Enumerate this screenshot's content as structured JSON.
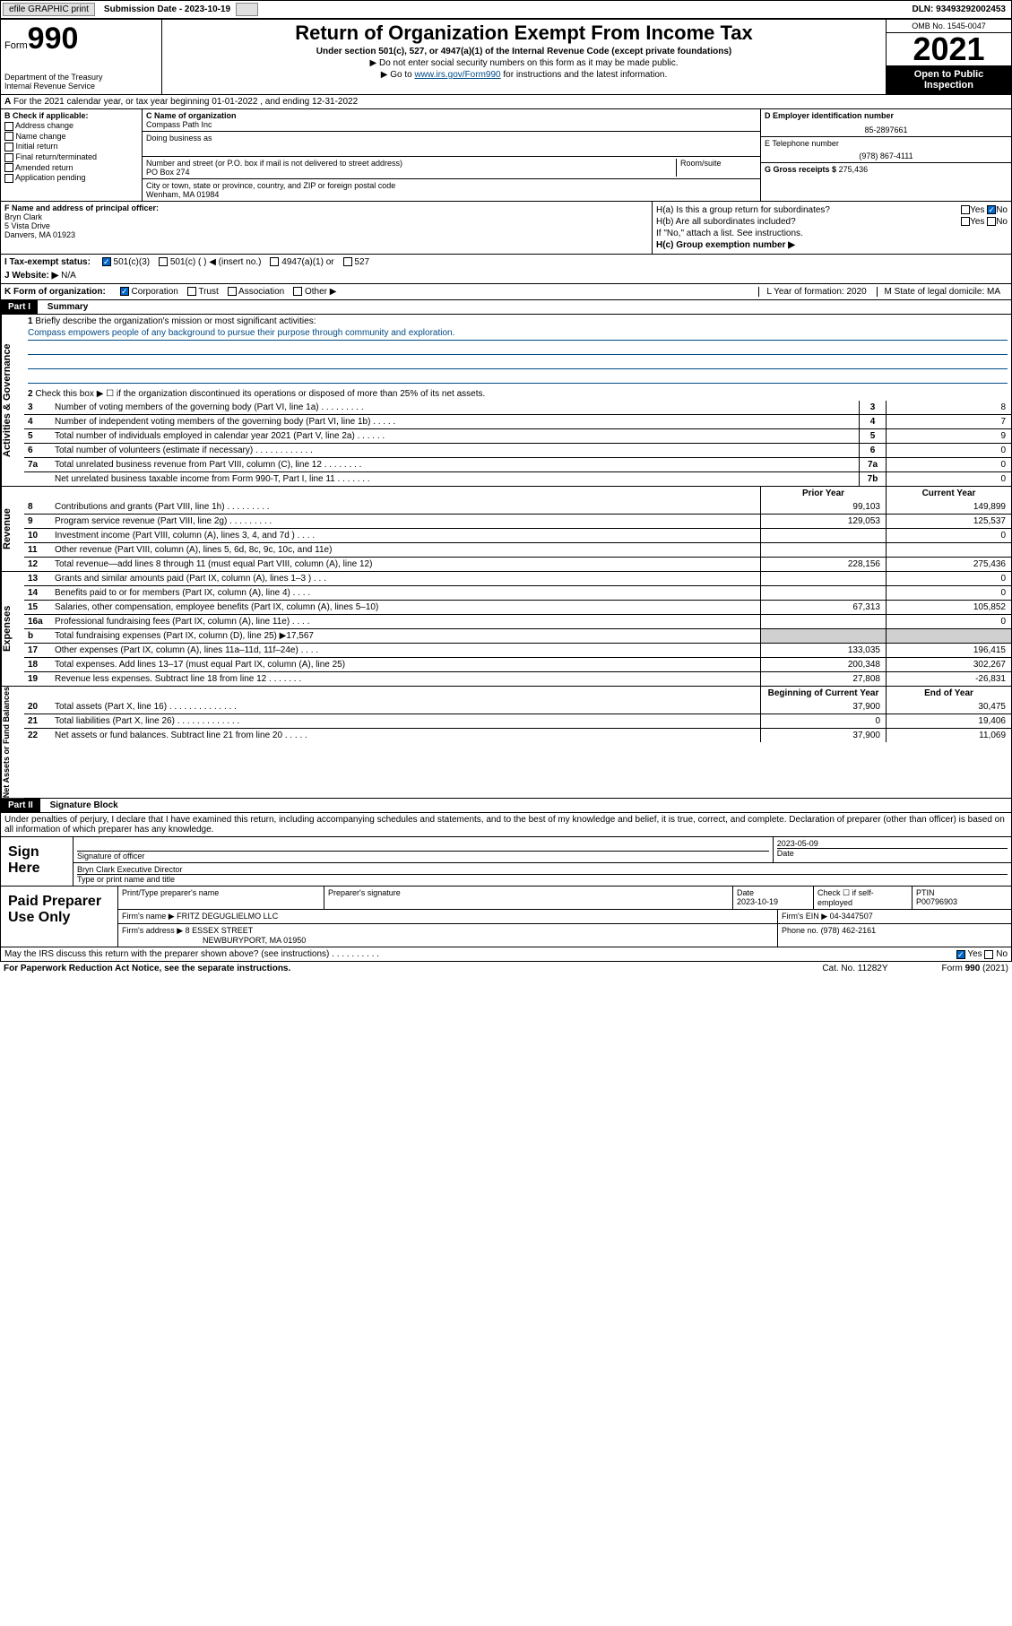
{
  "topbar": {
    "efile": "efile GRAPHIC print",
    "submission_label": "Submission Date - 2023-10-19",
    "dln": "DLN: 93493292002453"
  },
  "header": {
    "form_label": "Form",
    "form_number": "990",
    "dept": "Department of the Treasury\nInternal Revenue Service",
    "title": "Return of Organization Exempt From Income Tax",
    "subtitle1": "Under section 501(c), 527, or 4947(a)(1) of the Internal Revenue Code (except private foundations)",
    "subtitle2": "▶ Do not enter social security numbers on this form as it may be made public.",
    "subtitle3_pre": "▶ Go to ",
    "subtitle3_link": "www.irs.gov/Form990",
    "subtitle3_post": " for instructions and the latest information.",
    "omb": "OMB No. 1545-0047",
    "year": "2021",
    "open": "Open to Public Inspection"
  },
  "line_a": "For the 2021 calendar year, or tax year beginning 01-01-2022   , and ending 12-31-2022",
  "b": {
    "label": "B Check if applicable:",
    "opts": [
      "Address change",
      "Name change",
      "Initial return",
      "Final return/terminated",
      "Amended return",
      "Application pending"
    ]
  },
  "c": {
    "name_label": "C Name of organization",
    "name": "Compass Path Inc",
    "dba_label": "Doing business as",
    "dba": "",
    "addr_label": "Number and street (or P.O. box if mail is not delivered to street address)",
    "room_label": "Room/suite",
    "addr": "PO Box 274",
    "city_label": "City or town, state or province, country, and ZIP or foreign postal code",
    "city": "Wenham, MA  01984"
  },
  "d": {
    "label": "D Employer identification number",
    "val": "85-2897661"
  },
  "e": {
    "label": "E Telephone number",
    "val": "(978) 867-4111"
  },
  "g": {
    "label": "G Gross receipts $",
    "val": "275,436"
  },
  "f": {
    "label": "F  Name and address of principal officer:",
    "name": "Bryn Clark",
    "addr1": "5 Vista Drive",
    "addr2": "Danvers, MA  01923"
  },
  "h": {
    "a": "H(a)  Is this a group return for subordinates?",
    "b": "H(b)  Are all subordinates included?",
    "b_note": "If \"No,\" attach a list. See instructions.",
    "c": "H(c)  Group exemption number ▶",
    "yes": "Yes",
    "no": "No"
  },
  "i": {
    "label": "I   Tax-exempt status:",
    "opts": [
      "501(c)(3)",
      "501(c) (  ) ◀ (insert no.)",
      "4947(a)(1) or",
      "527"
    ]
  },
  "j": {
    "label": "J   Website: ▶",
    "val": "N/A"
  },
  "k": {
    "label": "K Form of organization:",
    "opts": [
      "Corporation",
      "Trust",
      "Association",
      "Other ▶"
    ],
    "l": "L Year of formation: 2020",
    "m": "M State of legal domicile: MA"
  },
  "part1": {
    "hdr": "Part I",
    "title": "Summary",
    "l1": "Briefly describe the organization's mission or most significant activities:",
    "mission": "Compass empowers people of any background to pursue their purpose through community and exploration.",
    "l2": "Check this box ▶ ☐  if the organization discontinued its operations or disposed of more than 25% of its net assets.",
    "rows_ag": [
      {
        "n": "3",
        "d": "Number of voting members of the governing body (Part VI, line 1a)   .    .    .    .    .    .    .    .    .",
        "b": "3",
        "v": "8"
      },
      {
        "n": "4",
        "d": "Number of independent voting members of the governing body (Part VI, line 1b)   .    .    .    .    .",
        "b": "4",
        "v": "7"
      },
      {
        "n": "5",
        "d": "Total number of individuals employed in calendar year 2021 (Part V, line 2a)   .    .    .    .    .    .",
        "b": "5",
        "v": "9"
      },
      {
        "n": "6",
        "d": "Total number of volunteers (estimate if necessary)   .    .    .    .    .    .    .    .    .    .    .    .",
        "b": "6",
        "v": "0"
      },
      {
        "n": "7a",
        "d": "Total unrelated business revenue from Part VIII, column (C), line 12   .    .    .    .    .    .    .    .",
        "b": "7a",
        "v": "0"
      },
      {
        "n": "",
        "d": "Net unrelated business taxable income from Form 990-T, Part I, line 11   .    .    .    .    .    .    .",
        "b": "7b",
        "v": "0"
      }
    ],
    "col_prior": "Prior Year",
    "col_current": "Current Year",
    "rows_rev": [
      {
        "n": "8",
        "d": "Contributions and grants (Part VIII, line 1h)   .    .    .    .    .    .    .    .    .",
        "p": "99,103",
        "c": "149,899"
      },
      {
        "n": "9",
        "d": "Program service revenue (Part VIII, line 2g)    .    .    .    .    .    .    .    .    .",
        "p": "129,053",
        "c": "125,537"
      },
      {
        "n": "10",
        "d": "Investment income (Part VIII, column (A), lines 3, 4, and 7d )    .    .    .    .",
        "p": "",
        "c": "0"
      },
      {
        "n": "11",
        "d": "Other revenue (Part VIII, column (A), lines 5, 6d, 8c, 9c, 10c, and 11e)",
        "p": "",
        "c": ""
      },
      {
        "n": "12",
        "d": "Total revenue—add lines 8 through 11 (must equal Part VIII, column (A), line 12)",
        "p": "228,156",
        "c": "275,436"
      }
    ],
    "rows_exp": [
      {
        "n": "13",
        "d": "Grants and similar amounts paid (Part IX, column (A), lines 1–3 )    .    .    .",
        "p": "",
        "c": "0"
      },
      {
        "n": "14",
        "d": "Benefits paid to or for members (Part IX, column (A), line 4)   .    .    .    .",
        "p": "",
        "c": "0"
      },
      {
        "n": "15",
        "d": "Salaries, other compensation, employee benefits (Part IX, column (A), lines 5–10)",
        "p": "67,313",
        "c": "105,852"
      },
      {
        "n": "16a",
        "d": "Professional fundraising fees (Part IX, column (A), line 11e)    .    .    .    .",
        "p": "",
        "c": "0"
      },
      {
        "n": "b",
        "d": "Total fundraising expenses (Part IX, column (D), line 25)  ▶17,567",
        "p": "shade",
        "c": "shade"
      },
      {
        "n": "17",
        "d": "Other expenses (Part IX, column (A), lines 11a–11d, 11f–24e)   .    .    .    .",
        "p": "133,035",
        "c": "196,415"
      },
      {
        "n": "18",
        "d": "Total expenses. Add lines 13–17 (must equal Part IX, column (A), line 25)",
        "p": "200,348",
        "c": "302,267"
      },
      {
        "n": "19",
        "d": "Revenue less expenses. Subtract line 18 from line 12   .    .    .    .    .    .    .",
        "p": "27,808",
        "c": "-26,831"
      }
    ],
    "col_begin": "Beginning of Current Year",
    "col_end": "End of Year",
    "rows_na": [
      {
        "n": "20",
        "d": "Total assets (Part X, line 16)   .    .    .    .    .    .    .    .    .    .    .    .    .    .",
        "p": "37,900",
        "c": "30,475"
      },
      {
        "n": "21",
        "d": "Total liabilities (Part X, line 26)   .    .    .    .    .    .    .    .    .    .    .    .    .",
        "p": "0",
        "c": "19,406"
      },
      {
        "n": "22",
        "d": "Net assets or fund balances. Subtract line 21 from line 20   .    .    .    .    .",
        "p": "37,900",
        "c": "11,069"
      }
    ],
    "side_ag": "Activities & Governance",
    "side_rev": "Revenue",
    "side_exp": "Expenses",
    "side_na": "Net Assets or Fund Balances"
  },
  "part2": {
    "hdr": "Part II",
    "title": "Signature Block",
    "decl": "Under penalties of perjury, I declare that I have examined this return, including accompanying schedules and statements, and to the best of my knowledge and belief, it is true, correct, and complete. Declaration of preparer (other than officer) is based on all information of which preparer has any knowledge."
  },
  "sign": {
    "label": "Sign Here",
    "sig_label": "Signature of officer",
    "date_label": "Date",
    "date": "2023-05-09",
    "name": "Bryn Clark  Executive Director",
    "name_label": "Type or print name and title"
  },
  "paid": {
    "label": "Paid Preparer Use Only",
    "h1": "Print/Type preparer's name",
    "h2": "Preparer's signature",
    "h3": "Date",
    "h4": "Check ☐ if self-employed",
    "h5": "PTIN",
    "date": "2023-10-19",
    "ptin": "P00796903",
    "firm_label": "Firm's name    ▶",
    "firm": "FRITZ DEGUGLIELMO LLC",
    "ein_label": "Firm's EIN ▶",
    "ein": "04-3447507",
    "addr_label": "Firm's address ▶",
    "addr1": "8 ESSEX STREET",
    "addr2": "NEWBURYPORT, MA  01950",
    "phone_label": "Phone no.",
    "phone": "(978) 462-2161"
  },
  "may_discuss": "May the IRS discuss this return with the preparer shown above? (see instructions)    .    .    .    .    .    .    .    .    .    .",
  "footer": {
    "left": "For Paperwork Reduction Act Notice, see the separate instructions.",
    "mid": "Cat. No. 11282Y",
    "right": "Form 990 (2021)"
  }
}
